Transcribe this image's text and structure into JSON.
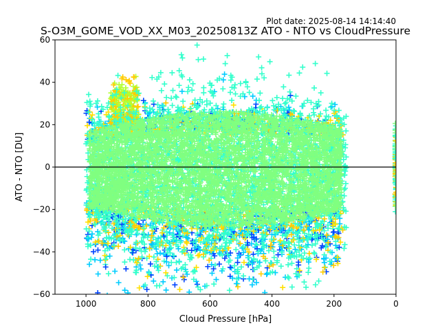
{
  "chart_data": {
    "type": "scatter",
    "title": "S-O3M_GOME_VOD_XX_M03_20250813Z ATO - NTO vs CloudPressure",
    "subtitle": "Plot date: 2025-08-14 14:14:40",
    "xlabel": "Cloud Pressure [hPa]",
    "ylabel": "ATO - NTO [DU]",
    "xlim": [
      1100,
      0
    ],
    "ylim": [
      -60,
      60
    ],
    "xticks": [
      1000,
      800,
      600,
      400,
      200,
      0
    ],
    "yticks": [
      60,
      40,
      20,
      0,
      -20,
      -40,
      -60
    ],
    "x_tick_labels": [
      "1000",
      "800",
      "600",
      "400",
      "200",
      "0"
    ],
    "y_tick_labels": [
      "60",
      "40",
      "20",
      "0",
      "−20",
      "−40",
      "−60"
    ],
    "reference_line_y": 0,
    "marker": "+",
    "grid": false,
    "legend": "none",
    "clusters": [
      {
        "name": "",
        "x_range": [
          150,
          1000
        ],
        "y_center": 0,
        "y_spread": 15,
        "color": "#80ff80"
      },
      {
        "name": "",
        "x_range": [
          150,
          1000
        ],
        "y_center": 0,
        "y_spread": 30,
        "color": "#33ffcc"
      },
      {
        "name": "",
        "x_range": [
          200,
          1000
        ],
        "y_center": -20,
        "y_spread": 45,
        "color": "#00ccff"
      },
      {
        "name": "",
        "x_range": [
          300,
          800
        ],
        "y_center": -40,
        "y_spread": 20,
        "color": "#0066ff"
      },
      {
        "name": "",
        "x_range": [
          250,
          1000
        ],
        "y_center": -30,
        "y_spread": 20,
        "color": "#ffcc00"
      },
      {
        "name": "",
        "x_range": [
          0,
          5
        ],
        "y_center": 0,
        "y_spread": 25,
        "color": "#33ffcc"
      }
    ],
    "colors": {
      "core": "#80ff80",
      "mid": "#33ffcc",
      "cyan": "#00ccff",
      "blue": "#0044ff",
      "yellow": "#ffcc00",
      "lime": "#b3ff33"
    }
  }
}
